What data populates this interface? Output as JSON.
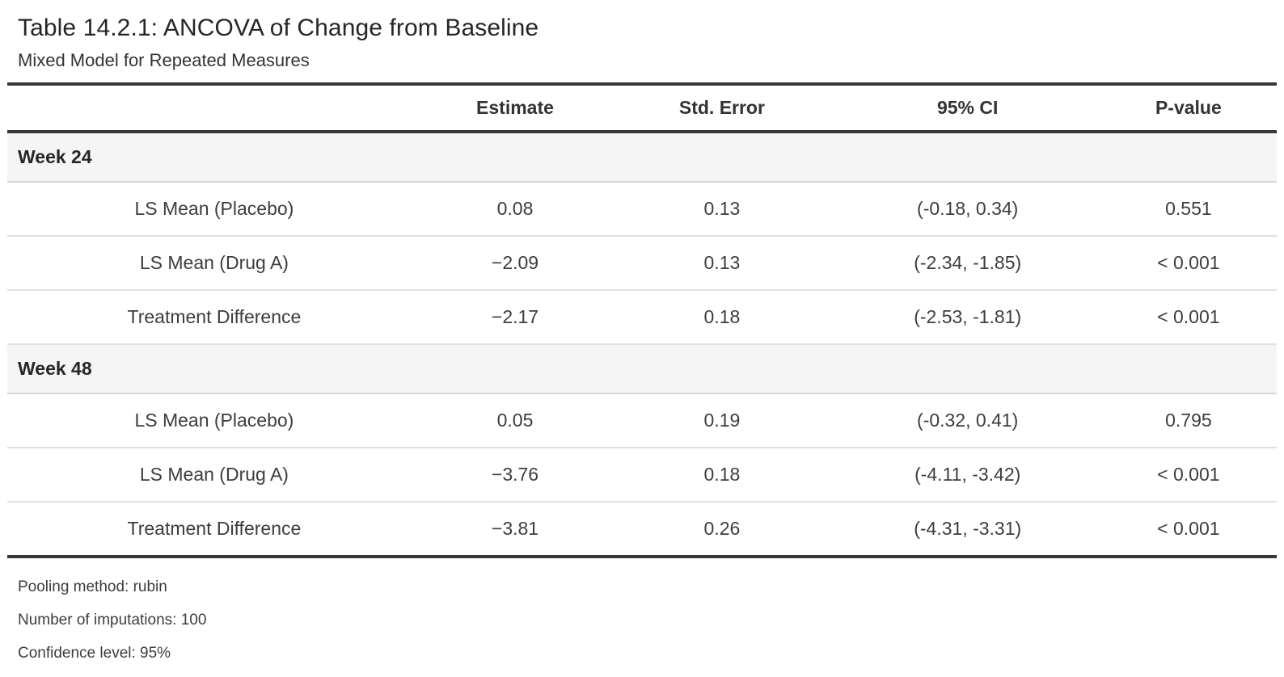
{
  "title": "Table 14.2.1: ANCOVA of Change from Baseline",
  "subtitle": "Mixed Model for Repeated Measures",
  "colors": {
    "thick_border": "#373737",
    "row_separator": "#e0e0e0",
    "group_row_background": "#f5f5f5",
    "group_row_border": "#d5d5d5",
    "text": "#333333"
  },
  "table": {
    "columns": [
      "",
      "Estimate",
      "Std. Error",
      "95% CI",
      "P-value"
    ],
    "groups": [
      {
        "label": "Week 24",
        "rows": [
          {
            "cells": [
              "LS Mean (Placebo)",
              "0.08",
              "0.13",
              "(-0.18, 0.34)",
              "0.551"
            ]
          },
          {
            "cells": [
              "LS Mean (Drug A)",
              "−2.09",
              "0.13",
              "(-2.34, -1.85)",
              "< 0.001"
            ]
          },
          {
            "cells": [
              "Treatment Difference",
              "−2.17",
              "0.18",
              "(-2.53, -1.81)",
              "< 0.001"
            ]
          }
        ]
      },
      {
        "label": "Week 48",
        "rows": [
          {
            "cells": [
              "LS Mean (Placebo)",
              "0.05",
              "0.19",
              "(-0.32, 0.41)",
              "0.795"
            ]
          },
          {
            "cells": [
              "LS Mean (Drug A)",
              "−3.76",
              "0.18",
              "(-4.11, -3.42)",
              "< 0.001"
            ]
          },
          {
            "cells": [
              "Treatment Difference",
              "−3.81",
              "0.26",
              "(-4.31, -3.31)",
              "< 0.001"
            ]
          }
        ]
      }
    ]
  },
  "footnotes": [
    "Pooling method: rubin",
    "Number of imputations: 100",
    "Confidence level: 95%"
  ]
}
